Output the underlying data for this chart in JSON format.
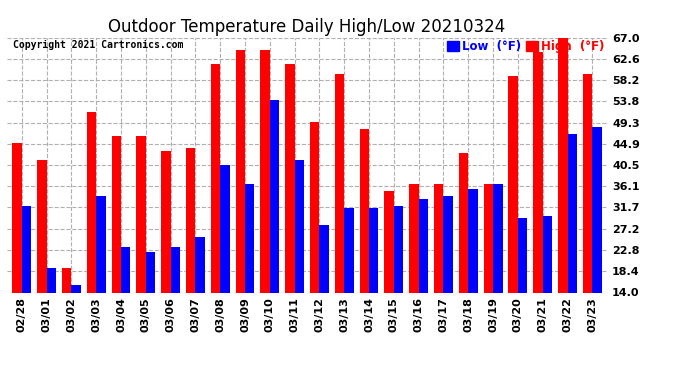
{
  "title": "Outdoor Temperature Daily High/Low 20210324",
  "copyright": "Copyright 2021 Cartronics.com",
  "dates": [
    "02/28",
    "03/01",
    "03/02",
    "03/03",
    "03/04",
    "03/05",
    "03/06",
    "03/07",
    "03/08",
    "03/09",
    "03/10",
    "03/11",
    "03/12",
    "03/13",
    "03/14",
    "03/15",
    "03/16",
    "03/17",
    "03/18",
    "03/19",
    "03/20",
    "03/21",
    "03/22",
    "03/23"
  ],
  "highs": [
    45.0,
    41.5,
    19.0,
    51.5,
    46.5,
    46.5,
    43.5,
    44.0,
    61.5,
    64.5,
    64.5,
    61.5,
    49.5,
    59.5,
    48.0,
    35.0,
    36.5,
    36.5,
    43.0,
    36.5,
    59.0,
    64.0,
    67.0,
    59.5
  ],
  "lows": [
    32.0,
    19.0,
    15.5,
    34.0,
    23.5,
    22.5,
    23.5,
    25.5,
    40.5,
    36.5,
    54.0,
    41.5,
    28.0,
    31.5,
    31.5,
    32.0,
    33.5,
    34.0,
    35.5,
    36.5,
    29.5,
    30.0,
    47.0,
    48.5
  ],
  "high_color": "#ff0000",
  "low_color": "#0000ff",
  "bg_color": "#ffffff",
  "grid_color": "#b0b0b0",
  "ylim_min": 14.0,
  "ylim_max": 67.0,
  "yticks": [
    14.0,
    18.4,
    22.8,
    27.2,
    31.7,
    36.1,
    40.5,
    44.9,
    49.3,
    53.8,
    58.2,
    62.6,
    67.0
  ],
  "bar_width": 0.38,
  "title_fontsize": 12,
  "tick_fontsize": 8,
  "legend_fontsize": 8.5
}
